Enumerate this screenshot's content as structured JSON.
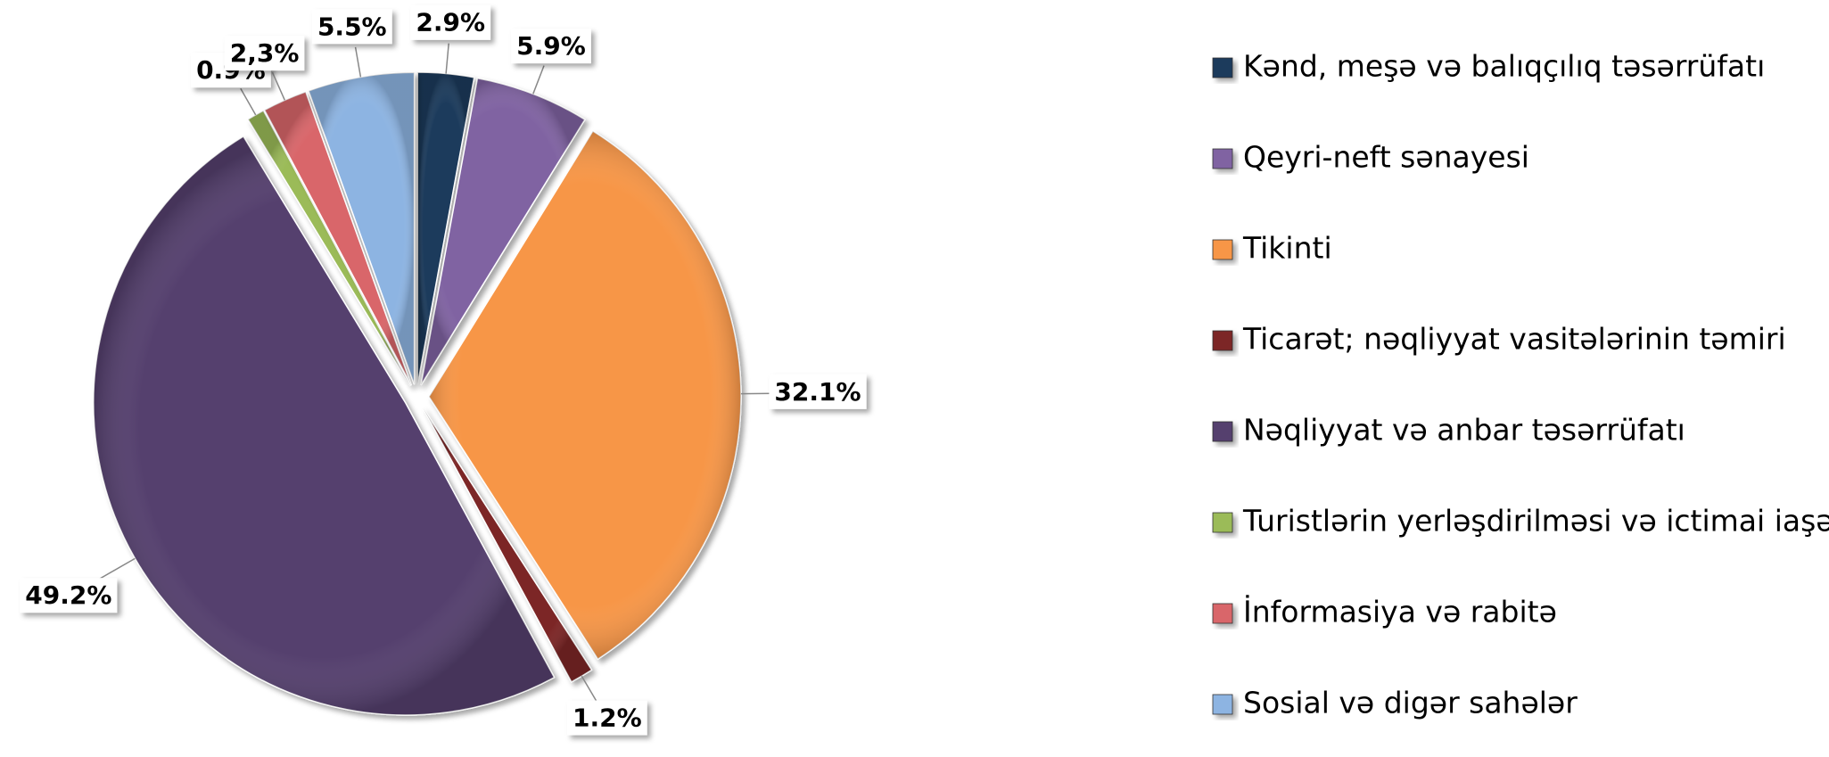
{
  "chart_data": {
    "type": "pie",
    "categories": [
      "Kənd, meşə və balıqçılıq təsərrüfatı",
      "Qeyri-neft sənayesi",
      "Tikinti",
      "Ticarət; nəqliyyat vasitələrinin təmiri",
      "Nəqliyyat və anbar təsərrüfatı",
      "Turistlərin yerləşdirilməsi və ictimai iaşə",
      "İnformasiya və rabitə",
      "Sosial və digər sahələr"
    ],
    "values": [
      2.9,
      5.9,
      32.1,
      1.2,
      49.2,
      0.9,
      2.3,
      5.5
    ],
    "value_labels": [
      "2.9%",
      "5.9%",
      "32.1%",
      "1.2%",
      "49.2%",
      "0.9%",
      "2,3%",
      "5.5%"
    ],
    "colors": [
      "#1f3b5c",
      "#8064a2",
      "#f79646",
      "#7b2525",
      "#54406e",
      "#9bbb59",
      "#d9666b",
      "#8db4e2"
    ],
    "legend": "right"
  }
}
